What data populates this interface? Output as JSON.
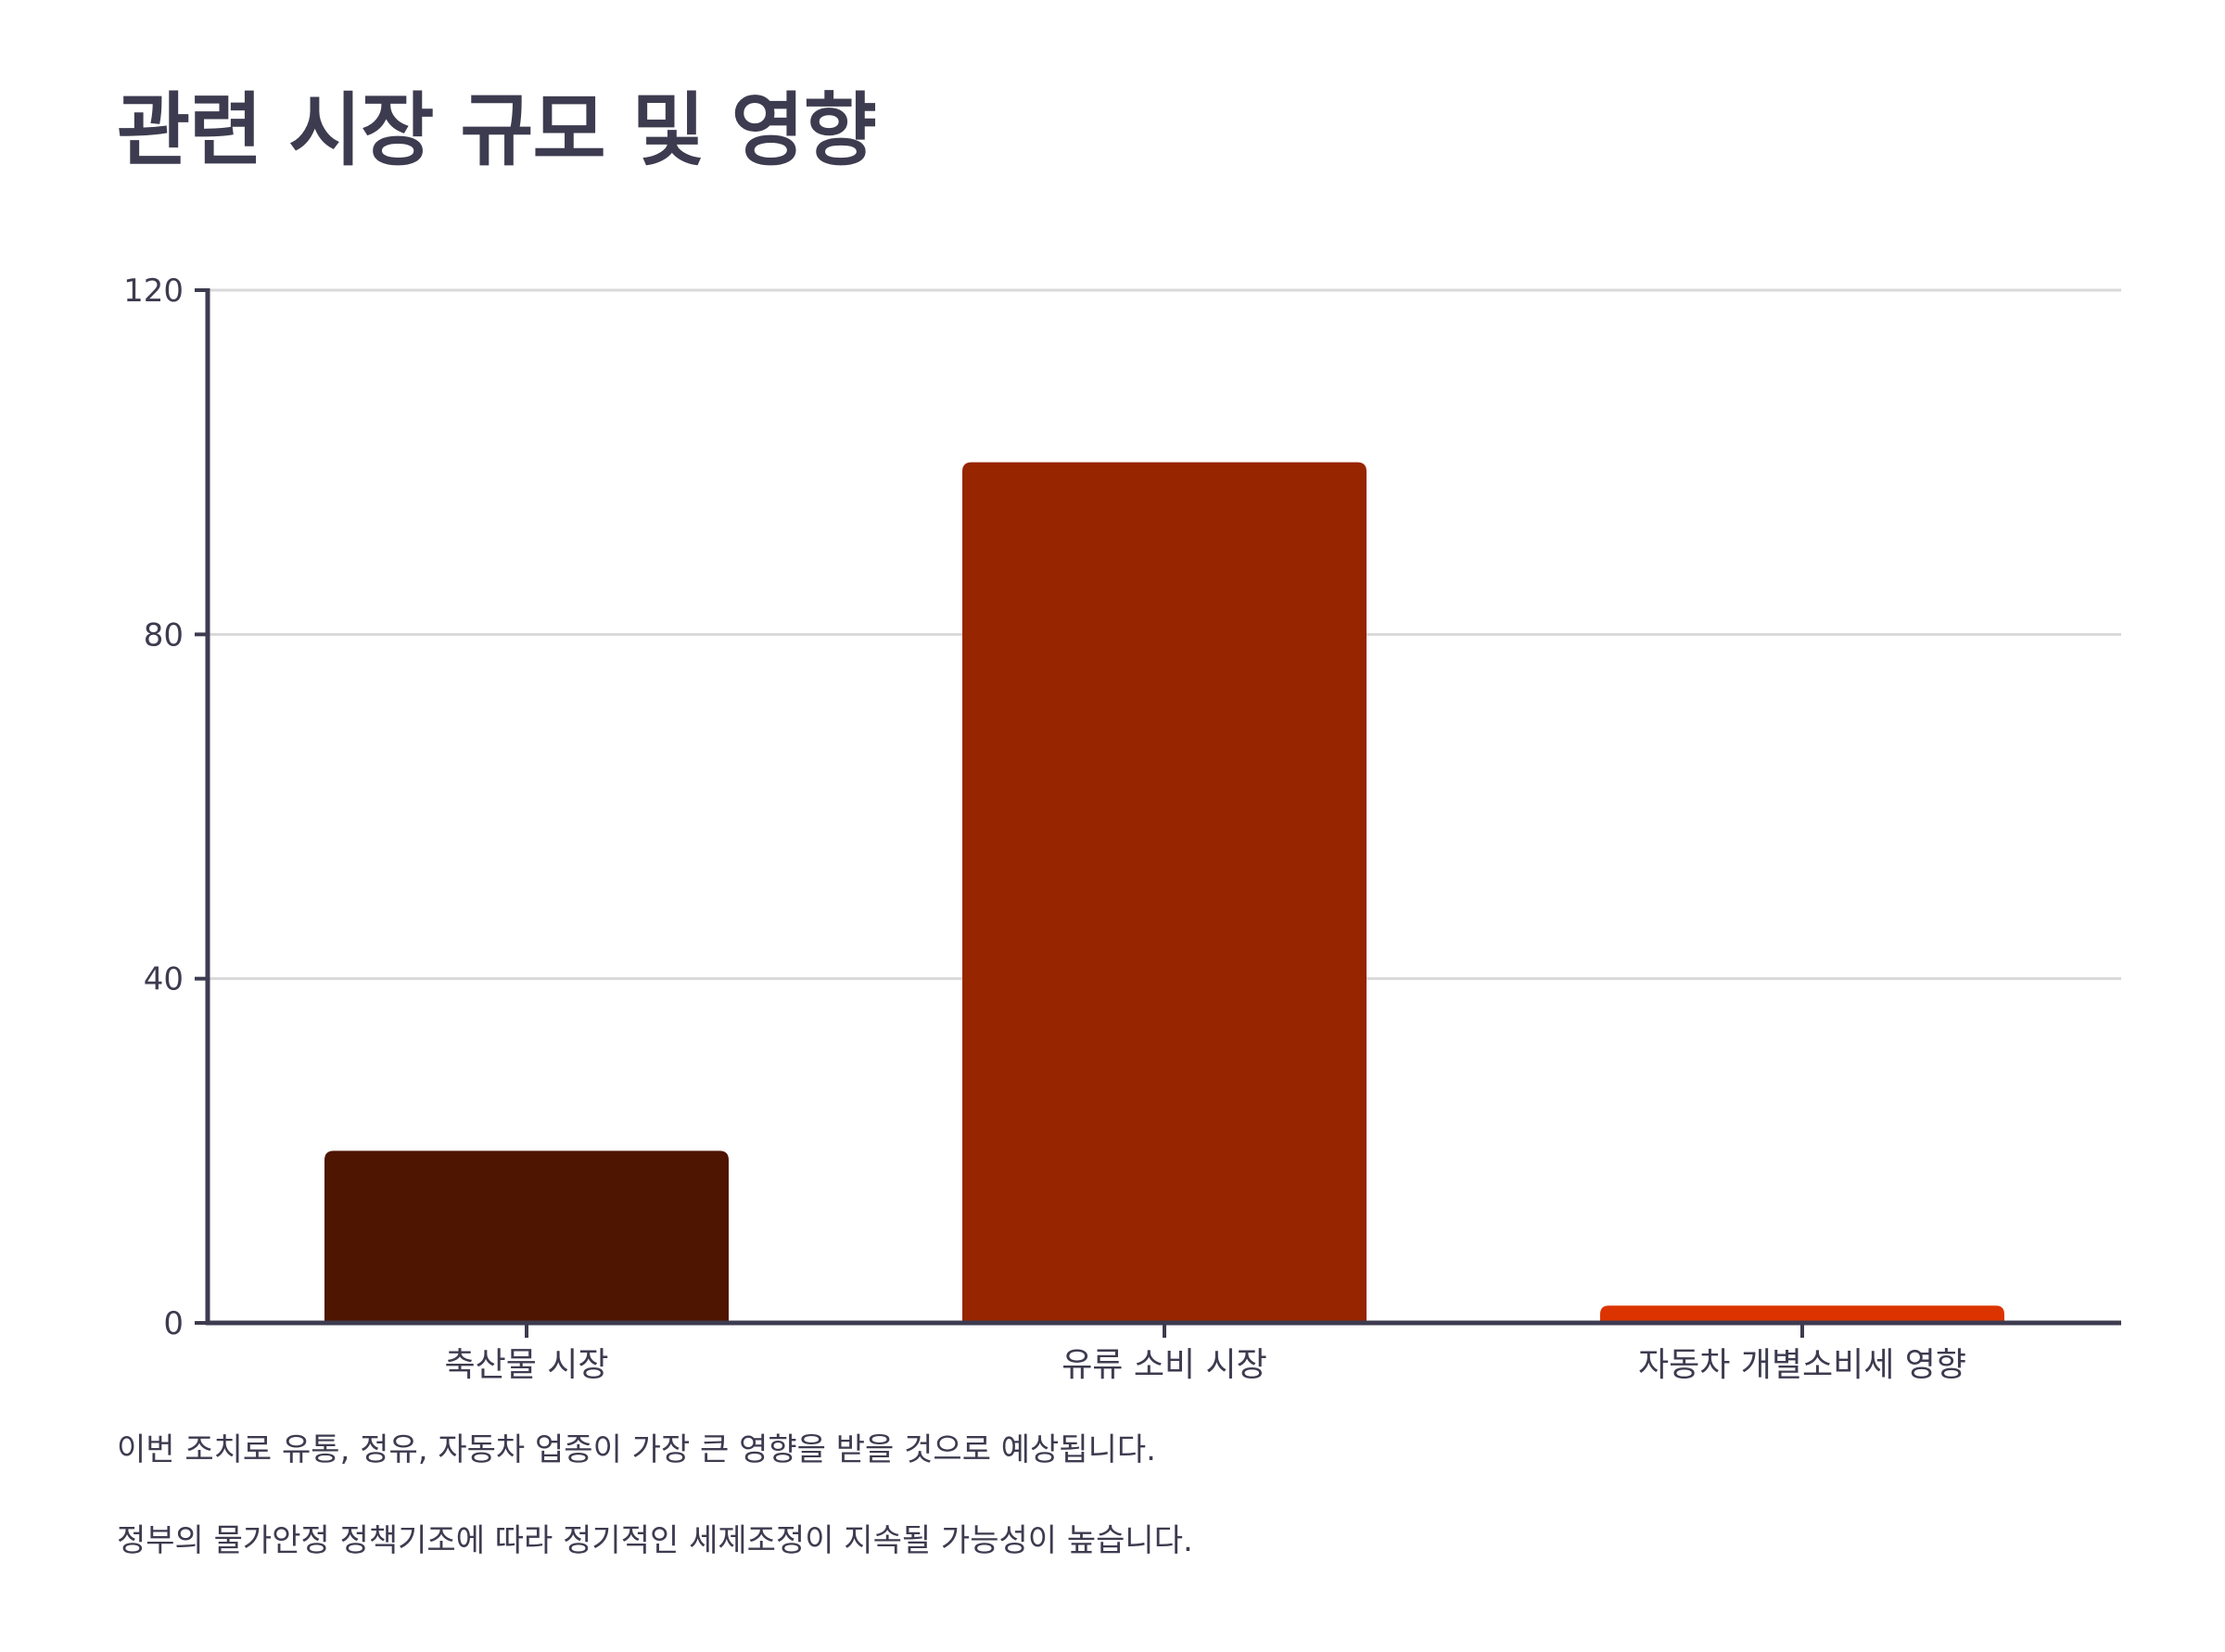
{
  "title": "관련 시장 규모 및 영향",
  "notes": [
    "이번 조치로 유통, 정유, 자동차 업종이 가장 큰 영향을 받을 것으로 예상됩니다.",
    "정부의 물가안정 정책기조에 따라 정기적인 세제조정이 지속될 가능성이 높습니다."
  ],
  "colors": {
    "text": "#3d3b4f",
    "axis": "#3d3b4f",
    "grid": "#d9d9d9"
  },
  "chart_data": {
    "type": "bar",
    "categories": [
      "축산물 시장",
      "유류 소비 시장",
      "자동차 개별소비세 영향"
    ],
    "values": [
      20,
      100,
      2
    ],
    "bar_colors": [
      "#4e1500",
      "#972500",
      "#dc3400"
    ],
    "yticks": [
      0,
      40,
      80,
      120
    ],
    "ylim": [
      0,
      120
    ],
    "grid": true,
    "xlabel": "",
    "ylabel": ""
  }
}
